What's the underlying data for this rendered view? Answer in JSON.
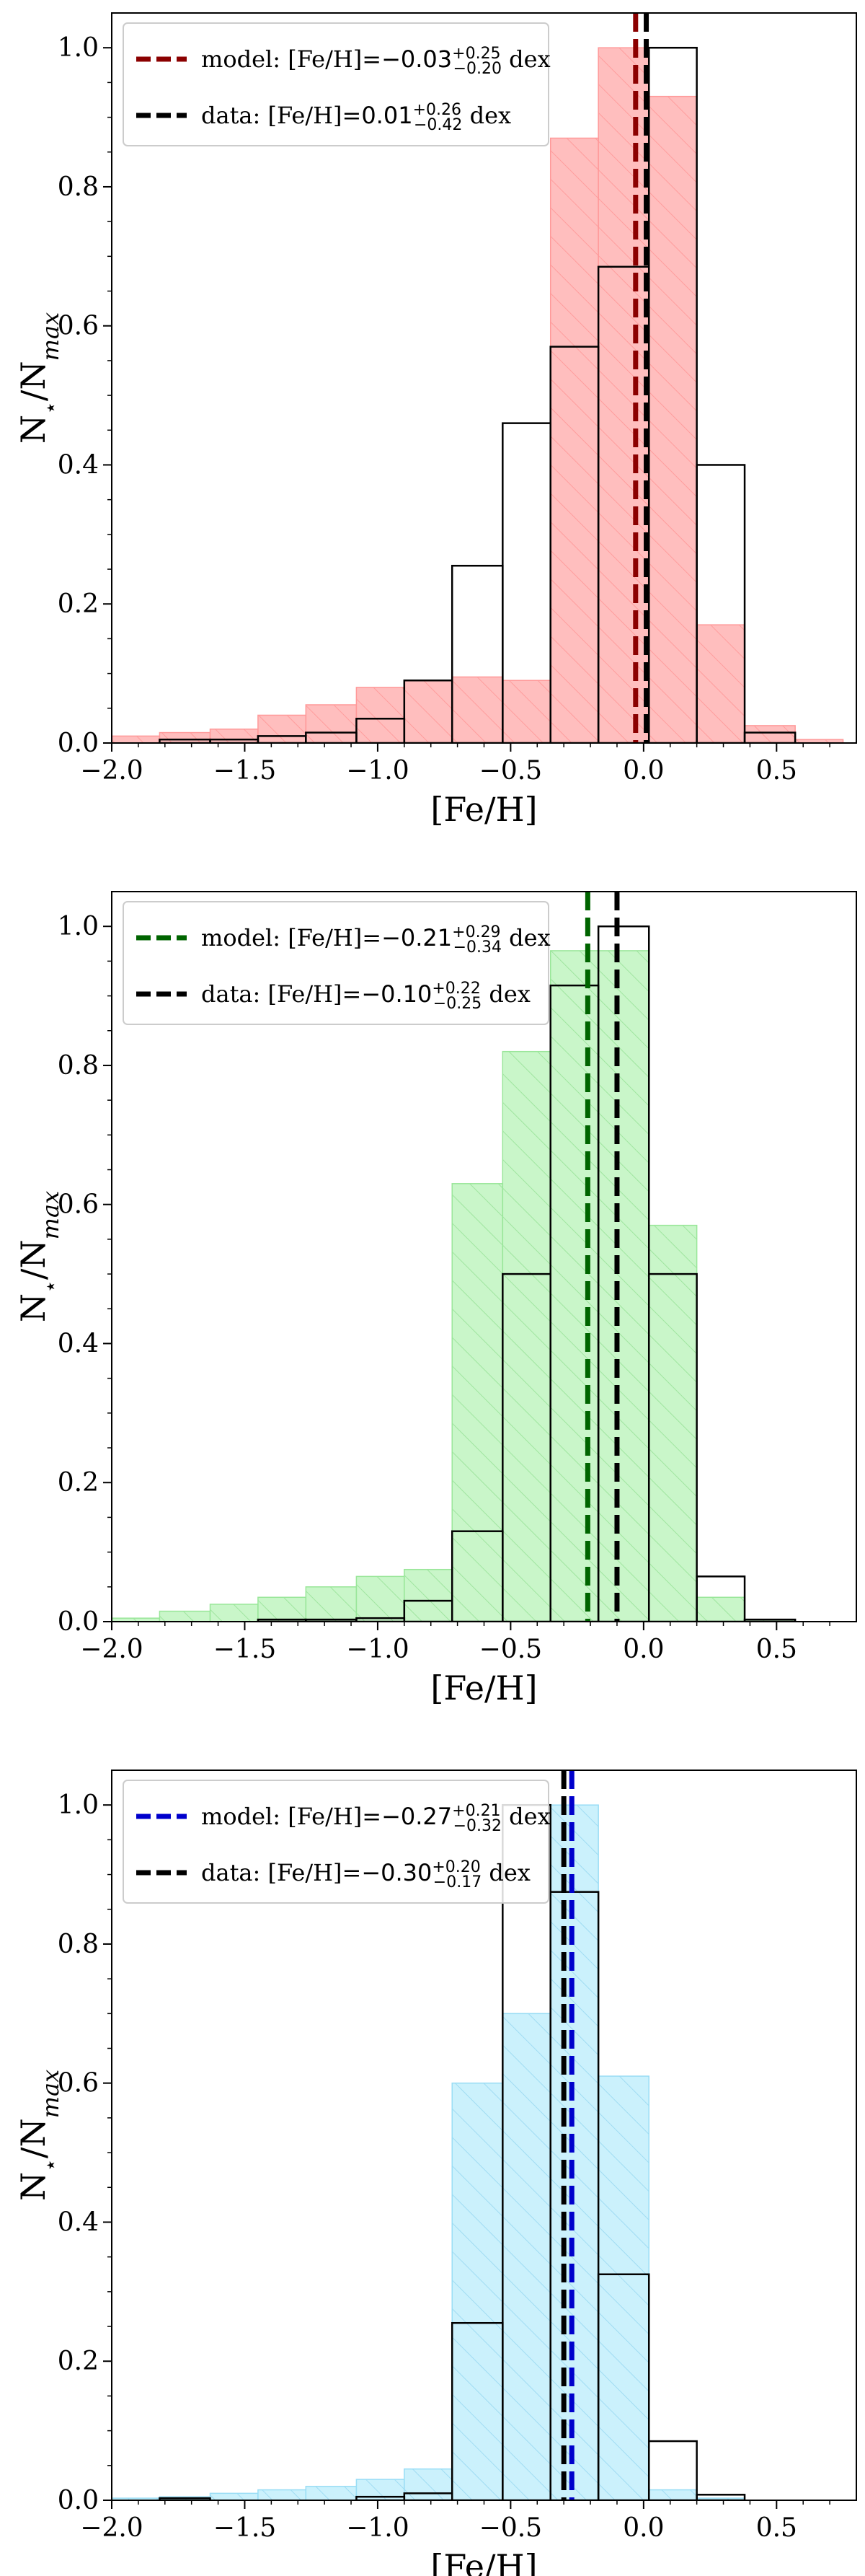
{
  "chart_data": [
    {
      "type": "bar",
      "xlabel": "[Fe/H]",
      "ylabel": "N⋆/Nmax",
      "xlim": [
        -2.0,
        0.8
      ],
      "ylim": [
        0,
        1.05
      ],
      "xticks": [
        -2.0,
        -1.5,
        -1.0,
        -0.5,
        0.0,
        0.5
      ],
      "xtick_labels": [
        "−2.0",
        "−1.5",
        "−1.0",
        "−0.5",
        "0.0",
        "0.5"
      ],
      "yticks": [
        0.0,
        0.2,
        0.4,
        0.6,
        0.8,
        1.0
      ],
      "ytick_labels": [
        "0.0",
        "0.2",
        "0.4",
        "0.6",
        "0.8",
        "1.0"
      ],
      "bin_edges": [
        -2.0,
        -1.82,
        -1.63,
        -1.45,
        -1.27,
        -1.08,
        -0.9,
        -0.72,
        -0.53,
        -0.35,
        -0.17,
        0.02,
        0.2,
        0.38,
        0.57,
        0.75
      ],
      "series": [
        {
          "name": "model",
          "fill": "#ffb3b3",
          "edge": "#ff9999",
          "hatch": true,
          "values": [
            0.01,
            0.015,
            0.02,
            0.04,
            0.055,
            0.08,
            0.09,
            0.095,
            0.09,
            0.87,
            1.0,
            0.93,
            0.17,
            0.025,
            0.005
          ]
        },
        {
          "name": "data",
          "fill": "none",
          "edge": "#000000",
          "hatch": false,
          "values": [
            0.0,
            0.005,
            0.005,
            0.01,
            0.015,
            0.035,
            0.09,
            0.255,
            0.46,
            0.57,
            0.685,
            1.0,
            0.4,
            0.015,
            0.0
          ]
        }
      ],
      "vlines": [
        {
          "name": "model",
          "x": -0.03,
          "color": "#8b0000"
        },
        {
          "name": "data",
          "x": 0.01,
          "color": "#000000"
        }
      ],
      "legend": {
        "placement": "top-left",
        "entries": [
          {
            "color": "#8b0000",
            "prefix": "model: [Fe/H]=",
            "value": "−0.03",
            "sup": "+0.25",
            "sub": "−0.20",
            "suffix": " dex"
          },
          {
            "color": "#000000",
            "prefix": "data: [Fe/H]=",
            "value": "0.01",
            "sup": "+0.26",
            "sub": "−0.42",
            "suffix": " dex"
          }
        ]
      }
    },
    {
      "type": "bar",
      "xlabel": "[Fe/H]",
      "ylabel": "N⋆/Nmax",
      "xlim": [
        -2.0,
        0.8
      ],
      "ylim": [
        0,
        1.05
      ],
      "xticks": [
        -2.0,
        -1.5,
        -1.0,
        -0.5,
        0.0,
        0.5
      ],
      "xtick_labels": [
        "−2.0",
        "−1.5",
        "−1.0",
        "−0.5",
        "0.0",
        "0.5"
      ],
      "yticks": [
        0.0,
        0.2,
        0.4,
        0.6,
        0.8,
        1.0
      ],
      "ytick_labels": [
        "0.0",
        "0.2",
        "0.4",
        "0.6",
        "0.8",
        "1.0"
      ],
      "bin_edges": [
        -2.0,
        -1.82,
        -1.63,
        -1.45,
        -1.27,
        -1.08,
        -0.9,
        -0.72,
        -0.53,
        -0.35,
        -0.17,
        0.02,
        0.2,
        0.38,
        0.57,
        0.75
      ],
      "series": [
        {
          "name": "model",
          "fill": "#bff5bf",
          "edge": "#99e699",
          "hatch": true,
          "values": [
            0.005,
            0.015,
            0.025,
            0.035,
            0.05,
            0.065,
            0.075,
            0.63,
            0.82,
            0.965,
            0.965,
            0.57,
            0.035,
            0.003,
            0.0
          ]
        },
        {
          "name": "data",
          "fill": "none",
          "edge": "#000000",
          "hatch": false,
          "values": [
            0.0,
            0.0,
            0.0,
            0.003,
            0.003,
            0.005,
            0.03,
            0.13,
            0.5,
            0.915,
            1.0,
            0.5,
            0.065,
            0.003,
            0.0
          ]
        }
      ],
      "vlines": [
        {
          "name": "model",
          "x": -0.21,
          "color": "#006400"
        },
        {
          "name": "data",
          "x": -0.1,
          "color": "#000000"
        }
      ],
      "legend": {
        "placement": "top-left",
        "entries": [
          {
            "color": "#006400",
            "prefix": "model: [Fe/H]=",
            "value": "−0.21",
            "sup": "+0.29",
            "sub": "−0.34",
            "suffix": " dex"
          },
          {
            "color": "#000000",
            "prefix": "data: [Fe/H]=",
            "value": "−0.10",
            "sup": "+0.22",
            "sub": "−0.25",
            "suffix": " dex"
          }
        ]
      }
    },
    {
      "type": "bar",
      "xlabel": "[Fe/H]",
      "ylabel": "N⋆/Nmax",
      "xlim": [
        -2.0,
        0.8
      ],
      "ylim": [
        0,
        1.05
      ],
      "xticks": [
        -2.0,
        -1.5,
        -1.0,
        -0.5,
        0.0,
        0.5
      ],
      "xtick_labels": [
        "−2.0",
        "−1.5",
        "−1.0",
        "−0.5",
        "0.0",
        "0.5"
      ],
      "yticks": [
        0.0,
        0.2,
        0.4,
        0.6,
        0.8,
        1.0
      ],
      "ytick_labels": [
        "0.0",
        "0.2",
        "0.4",
        "0.6",
        "0.8",
        "1.0"
      ],
      "bin_edges": [
        -2.0,
        -1.82,
        -1.63,
        -1.45,
        -1.27,
        -1.08,
        -0.9,
        -0.72,
        -0.53,
        -0.35,
        -0.17,
        0.02,
        0.2,
        0.38,
        0.57,
        0.75
      ],
      "series": [
        {
          "name": "model",
          "fill": "#c2eefc",
          "edge": "#99ddf5",
          "hatch": true,
          "values": [
            0.003,
            0.005,
            0.01,
            0.015,
            0.02,
            0.03,
            0.045,
            0.6,
            0.7,
            1.0,
            0.61,
            0.015,
            0.003,
            0.0,
            0.0
          ]
        },
        {
          "name": "data",
          "fill": "none",
          "edge": "#000000",
          "hatch": false,
          "values": [
            0.0,
            0.003,
            0.0,
            0.0,
            0.0,
            0.005,
            0.01,
            0.255,
            1.0,
            0.875,
            0.325,
            0.085,
            0.008,
            0.0,
            0.0
          ]
        }
      ],
      "vlines": [
        {
          "name": "model",
          "x": -0.27,
          "color": "#0000cc"
        },
        {
          "name": "data",
          "x": -0.3,
          "color": "#000000"
        }
      ],
      "legend": {
        "placement": "top-left",
        "entries": [
          {
            "color": "#0000cc",
            "prefix": "model: [Fe/H]=",
            "value": "−0.27",
            "sup": "+0.21",
            "sub": "−0.32",
            "suffix": " dex"
          },
          {
            "color": "#000000",
            "prefix": "data: [Fe/H]=",
            "value": "−0.30",
            "sup": "+0.20",
            "sub": "−0.17",
            "suffix": " dex"
          }
        ]
      }
    }
  ]
}
